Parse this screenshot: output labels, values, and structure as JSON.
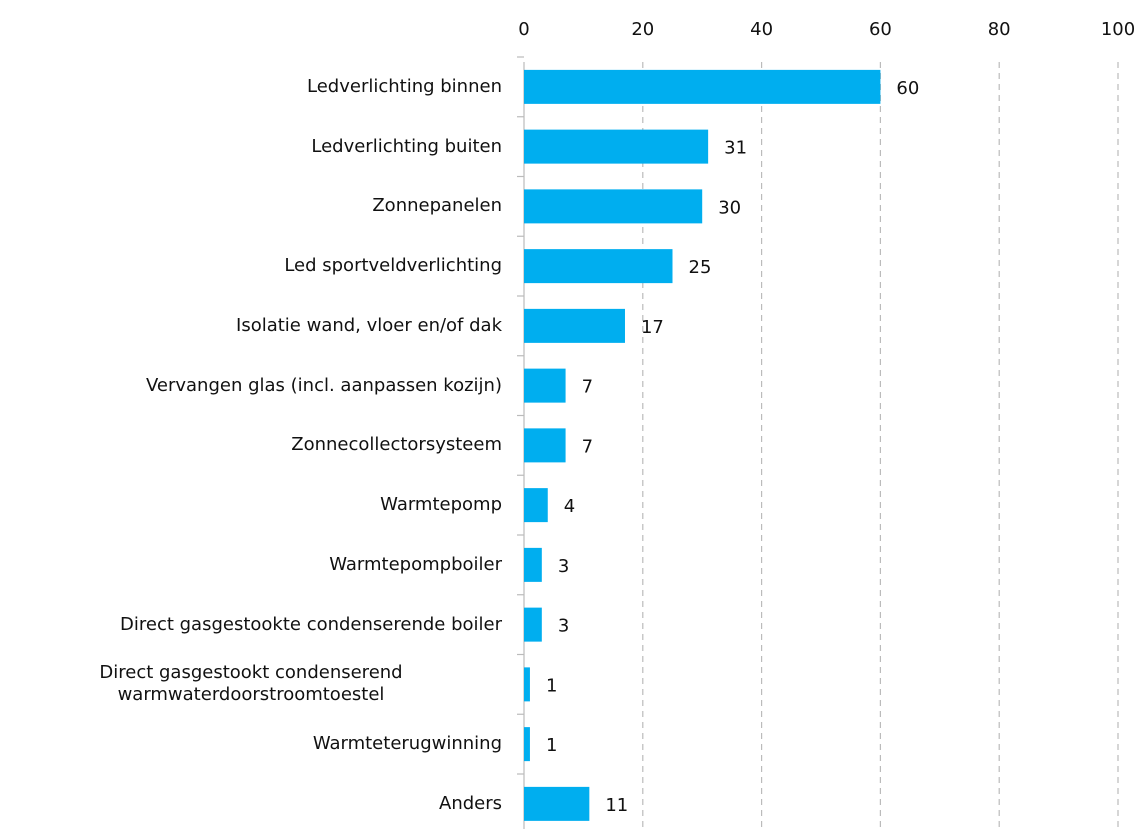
{
  "chart_data": {
    "type": "bar",
    "orientation": "horizontal",
    "categories": [
      "Ledverlichting binnen",
      "Ledverlichting buiten",
      "Zonnepanelen",
      "Led sportveldverlichting",
      "Isolatie wand, vloer en/of dak",
      "Vervangen glas (incl. aanpassen kozijn)",
      "Zonnecollectorsysteem",
      "Warmtepomp",
      "Warmtepompboiler",
      "Direct gasgestookte condenserende boiler",
      "Direct gasgestookt condenserend warmwaterdoorstroomtoestel",
      "Warmteterugwinning",
      "Anders"
    ],
    "values": [
      60,
      31,
      30,
      25,
      17,
      7,
      7,
      4,
      3,
      3,
      1,
      1,
      11
    ],
    "color": "#00aeef",
    "xlim": [
      0,
      100
    ],
    "xticks": [
      0,
      20,
      40,
      60,
      80,
      100
    ],
    "grid": true
  }
}
